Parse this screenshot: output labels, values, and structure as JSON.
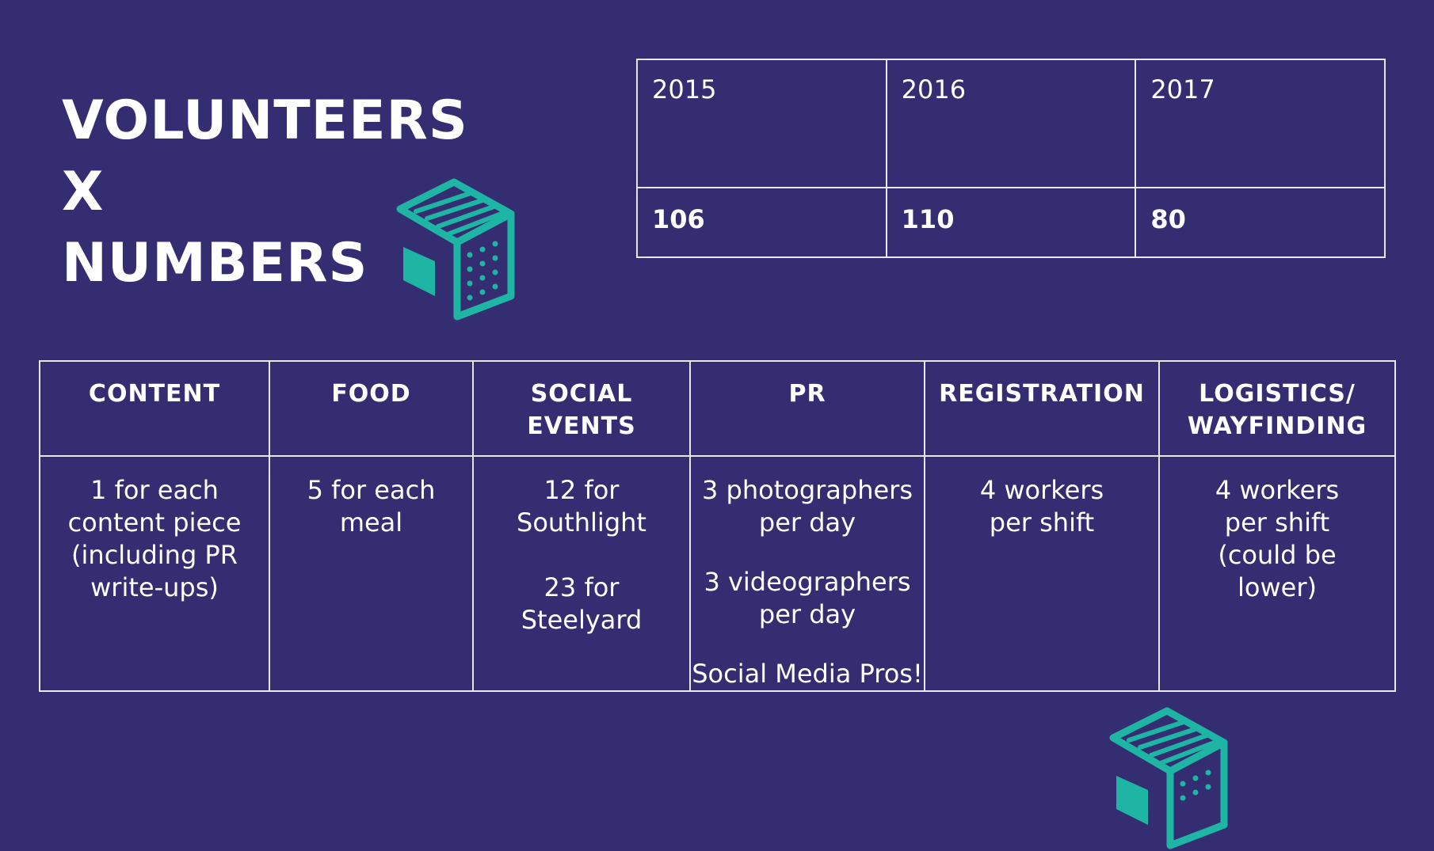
{
  "title": {
    "line1": "VOLUNTEERS",
    "line2": "X",
    "line3": "NUMBERS"
  },
  "years_table": {
    "years": [
      "2015",
      "2016",
      "2017"
    ],
    "counts": [
      "106",
      "110",
      "80"
    ]
  },
  "roles_table": {
    "headers": [
      [
        "CONTENT"
      ],
      [
        "FOOD"
      ],
      [
        "SOCIAL",
        "EVENTS"
      ],
      [
        "PR"
      ],
      [
        "REGISTRATION"
      ],
      [
        "LOGISTICS/",
        "WAYFINDING"
      ]
    ],
    "content": [
      "1 for each",
      "content piece",
      "(including PR",
      "write-ups)"
    ],
    "food": [
      "5 for each",
      "meal"
    ],
    "social": {
      "southlight": [
        "12 for",
        "Southlight"
      ],
      "steelyard": [
        "23 for",
        "Steelyard"
      ]
    },
    "pr": {
      "photographers": [
        "3 photographers",
        "per day"
      ],
      "videographers": [
        "3 videographers",
        "per day"
      ],
      "social_media": "Social Media Pros!"
    },
    "registration": [
      "4 workers",
      "per shift"
    ],
    "logistics": [
      "4 workers",
      "per shift",
      "(could be",
      "lower)"
    ]
  },
  "colors": {
    "background": "#352d72",
    "accent": "#1fb5a5",
    "text": "#ffffff"
  },
  "icons": [
    "cube-logo-icon",
    "cube-logo-icon-bottom"
  ]
}
